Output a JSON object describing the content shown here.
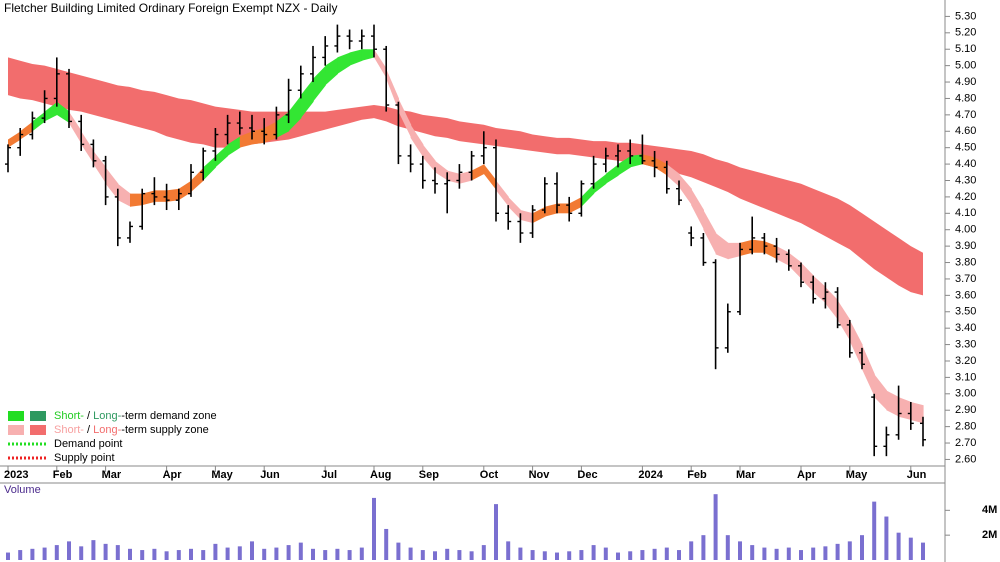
{
  "chart_data": {
    "type": "ohlc",
    "title": "Fletcher Building Limited Ordinary Foreign Exempt NZX - Daily",
    "categories": [
      "2023",
      null,
      null,
      null,
      "Feb",
      null,
      null,
      null,
      "Mar",
      null,
      null,
      null,
      null,
      "Apr",
      null,
      null,
      null,
      "May",
      null,
      null,
      null,
      "Jun",
      null,
      null,
      null,
      null,
      "Jul",
      null,
      null,
      null,
      "Aug",
      null,
      null,
      null,
      "Sep",
      null,
      null,
      null,
      null,
      "Oct",
      null,
      null,
      null,
      "Nov",
      null,
      null,
      null,
      "Dec",
      null,
      null,
      null,
      null,
      "2024",
      null,
      null,
      null,
      "Feb",
      null,
      null,
      null,
      "Mar",
      null,
      null,
      null,
      null,
      "Apr",
      null,
      null,
      null,
      "May",
      null,
      null,
      null,
      null,
      "Jun",
      null
    ],
    "open": [
      4.4,
      4.5,
      4.58,
      4.68,
      4.8,
      4.95,
      4.66,
      4.52,
      4.42,
      4.2,
      3.95,
      4.02,
      4.22,
      4.2,
      4.18,
      4.22,
      4.35,
      4.48,
      4.58,
      4.65,
      4.62,
      4.6,
      4.58,
      4.7,
      4.85,
      4.95,
      5.05,
      5.12,
      5.18,
      5.15,
      5.18,
      5.1,
      4.76,
      4.45,
      4.4,
      4.3,
      4.28,
      4.3,
      4.35,
      4.45,
      4.5,
      4.1,
      4.05,
      3.98,
      4.12,
      4.28,
      4.15,
      4.1,
      4.28,
      4.4,
      4.45,
      4.48,
      4.45,
      4.42,
      4.38,
      4.25,
      3.98,
      3.95,
      3.8,
      3.28,
      3.5,
      3.88,
      3.95,
      3.9,
      3.85,
      3.78,
      3.68,
      3.58,
      3.62,
      3.42,
      3.25,
      2.98,
      2.68,
      2.75,
      2.88,
      2.82
    ],
    "high": [
      4.52,
      4.62,
      4.72,
      4.85,
      5.05,
      4.98,
      4.7,
      4.55,
      4.45,
      4.25,
      4.05,
      4.25,
      4.32,
      4.28,
      4.25,
      4.4,
      4.5,
      4.62,
      4.7,
      4.72,
      4.7,
      4.68,
      4.75,
      4.92,
      5.0,
      5.12,
      5.18,
      5.25,
      5.22,
      5.22,
      5.25,
      5.12,
      4.78,
      4.52,
      4.45,
      4.38,
      4.35,
      4.4,
      4.48,
      4.6,
      4.55,
      4.15,
      4.1,
      4.15,
      4.32,
      4.35,
      4.2,
      4.3,
      4.45,
      4.5,
      4.52,
      4.55,
      4.58,
      4.48,
      4.42,
      4.3,
      4.02,
      3.98,
      3.82,
      3.55,
      3.92,
      4.08,
      3.98,
      3.95,
      3.88,
      3.8,
      3.72,
      3.68,
      3.65,
      3.45,
      3.28,
      3.0,
      2.8,
      3.05,
      2.95,
      2.86
    ],
    "low": [
      4.35,
      4.45,
      4.55,
      4.65,
      4.75,
      4.62,
      4.48,
      4.38,
      4.15,
      3.9,
      3.92,
      4.0,
      4.15,
      4.12,
      4.12,
      4.2,
      4.3,
      4.42,
      4.52,
      4.58,
      4.55,
      4.52,
      4.55,
      4.65,
      4.8,
      4.9,
      5.0,
      5.08,
      5.1,
      5.1,
      5.05,
      4.72,
      4.4,
      4.35,
      4.25,
      4.22,
      4.1,
      4.25,
      4.3,
      4.4,
      4.05,
      4.0,
      3.92,
      3.95,
      4.1,
      4.1,
      4.05,
      4.08,
      4.25,
      4.35,
      4.38,
      4.4,
      4.4,
      4.32,
      4.22,
      4.15,
      3.9,
      3.78,
      3.15,
      3.25,
      3.48,
      3.85,
      3.85,
      3.8,
      3.75,
      3.65,
      3.55,
      3.52,
      3.4,
      3.22,
      3.15,
      2.62,
      2.62,
      2.72,
      2.78,
      2.68
    ],
    "close": [
      4.5,
      4.58,
      4.68,
      4.8,
      4.95,
      4.66,
      4.52,
      4.42,
      4.2,
      3.95,
      4.02,
      4.22,
      4.2,
      4.18,
      4.22,
      4.35,
      4.48,
      4.58,
      4.65,
      4.62,
      4.6,
      4.58,
      4.7,
      4.85,
      4.95,
      5.05,
      5.12,
      5.18,
      5.15,
      5.18,
      5.1,
      4.76,
      4.45,
      4.4,
      4.3,
      4.28,
      4.3,
      4.35,
      4.45,
      4.5,
      4.1,
      4.05,
      3.98,
      4.12,
      4.28,
      4.15,
      4.1,
      4.28,
      4.4,
      4.45,
      4.48,
      4.45,
      4.42,
      4.38,
      4.25,
      4.18,
      3.95,
      3.8,
      3.28,
      3.5,
      3.88,
      3.95,
      3.9,
      3.85,
      3.78,
      3.68,
      3.58,
      3.62,
      3.42,
      3.25,
      3.18,
      2.68,
      2.75,
      2.88,
      2.82,
      2.72
    ],
    "bar_color": "#000000",
    "long_band": {
      "color": "#f26d6d",
      "upper": [
        5.05,
        5.03,
        5.01,
        5.0,
        4.98,
        4.96,
        4.94,
        4.92,
        4.9,
        4.88,
        4.87,
        4.85,
        4.84,
        4.82,
        4.8,
        4.79,
        4.77,
        4.75,
        4.74,
        4.73,
        4.72,
        4.72,
        4.72,
        4.72,
        4.72,
        4.72,
        4.72,
        4.73,
        4.74,
        4.75,
        4.76,
        4.75,
        4.73,
        4.72,
        4.7,
        4.69,
        4.68,
        4.66,
        4.65,
        4.64,
        4.62,
        4.61,
        4.6,
        4.58,
        4.57,
        4.56,
        4.56,
        4.55,
        4.54,
        4.54,
        4.53,
        4.53,
        4.52,
        4.51,
        4.5,
        4.49,
        4.48,
        4.46,
        4.43,
        4.41,
        4.38,
        4.36,
        4.34,
        4.32,
        4.3,
        4.28,
        4.25,
        4.22,
        4.19,
        4.15,
        4.1,
        4.05,
        4.0,
        3.95,
        3.9,
        3.86
      ],
      "lower": [
        4.82,
        4.8,
        4.79,
        4.77,
        4.75,
        4.73,
        4.72,
        4.7,
        4.68,
        4.66,
        4.64,
        4.62,
        4.6,
        4.57,
        4.55,
        4.53,
        4.52,
        4.5,
        4.5,
        4.51,
        4.52,
        4.53,
        4.54,
        4.55,
        4.57,
        4.59,
        4.61,
        4.63,
        4.65,
        4.67,
        4.68,
        4.66,
        4.63,
        4.61,
        4.59,
        4.57,
        4.56,
        4.54,
        4.53,
        4.52,
        4.51,
        4.5,
        4.49,
        4.48,
        4.47,
        4.46,
        4.46,
        4.45,
        4.44,
        4.43,
        4.42,
        4.41,
        4.4,
        4.38,
        4.36,
        4.34,
        4.32,
        4.29,
        4.26,
        4.23,
        4.19,
        4.16,
        4.13,
        4.1,
        4.07,
        4.04,
        4.0,
        3.96,
        3.92,
        3.88,
        3.82,
        3.76,
        3.71,
        3.66,
        3.62,
        3.6
      ]
    },
    "short_band": {
      "upper": [
        4.55,
        4.6,
        4.66,
        4.72,
        4.78,
        4.72,
        4.6,
        4.48,
        4.38,
        4.28,
        4.22,
        4.22,
        4.24,
        4.24,
        4.25,
        4.3,
        4.38,
        4.45,
        4.52,
        4.57,
        4.6,
        4.62,
        4.66,
        4.72,
        4.82,
        4.92,
        5.0,
        5.05,
        5.08,
        5.1,
        5.1,
        4.98,
        4.8,
        4.64,
        4.52,
        4.42,
        4.36,
        4.34,
        4.36,
        4.4,
        4.3,
        4.2,
        4.12,
        4.1,
        4.14,
        4.16,
        4.16,
        4.2,
        4.28,
        4.34,
        4.4,
        4.45,
        4.46,
        4.44,
        4.4,
        4.34,
        4.25,
        4.12,
        3.98,
        3.92,
        3.92,
        3.94,
        3.93,
        3.9,
        3.86,
        3.8,
        3.72,
        3.65,
        3.57,
        3.45,
        3.3,
        3.12,
        3.02,
        2.98,
        2.95,
        2.93
      ],
      "lower": [
        4.5,
        4.55,
        4.6,
        4.66,
        4.7,
        4.65,
        4.52,
        4.4,
        4.28,
        4.18,
        4.14,
        4.15,
        4.17,
        4.17,
        4.18,
        4.23,
        4.3,
        4.38,
        4.45,
        4.5,
        4.52,
        4.53,
        4.56,
        4.6,
        4.68,
        4.78,
        4.88,
        4.95,
        5.0,
        5.03,
        5.05,
        4.92,
        4.72,
        4.56,
        4.44,
        4.35,
        4.3,
        4.28,
        4.3,
        4.34,
        4.24,
        4.14,
        4.06,
        4.04,
        4.08,
        4.1,
        4.1,
        4.14,
        4.22,
        4.28,
        4.33,
        4.38,
        4.4,
        4.38,
        4.33,
        4.26,
        4.15,
        4.0,
        3.85,
        3.82,
        3.84,
        3.86,
        3.86,
        3.82,
        3.78,
        3.7,
        3.62,
        3.55,
        3.45,
        3.32,
        3.15,
        2.98,
        2.9,
        2.86,
        2.84,
        2.82
      ],
      "segment_colors": [
        "#f27a33",
        "#f27a33",
        "#33e633",
        "#33e633",
        "#33e633",
        "#f7b0b0",
        "#f7b0b0",
        "#f7b0b0",
        "#f7b0b0",
        "#f7b0b0",
        "#f27a33",
        "#f27a33",
        "#f27a33",
        "#f27a33",
        "#f27a33",
        "#f27a33",
        "#33e633",
        "#33e633",
        "#33e633",
        "#f27a33",
        "#f27a33",
        "#f27a33",
        "#33e633",
        "#33e633",
        "#33e633",
        "#33e633",
        "#33e633",
        "#33e633",
        "#33e633",
        "#33e633",
        "#f7b0b0",
        "#f7b0b0",
        "#f7b0b0",
        "#f7b0b0",
        "#f7b0b0",
        "#f7b0b0",
        "#f7b0b0",
        "#f7b0b0",
        "#f27a33",
        "#f27a33",
        "#f7b0b0",
        "#f7b0b0",
        "#f7b0b0",
        "#f27a33",
        "#f27a33",
        "#f27a33",
        "#f27a33",
        "#33e633",
        "#33e633",
        "#33e633",
        "#33e633",
        "#33e633",
        "#f27a33",
        "#f27a33",
        "#f7b0b0",
        "#f7b0b0",
        "#f7b0b0",
        "#f7b0b0",
        "#f7b0b0",
        "#f7b0b0",
        "#f27a33",
        "#f27a33",
        "#f27a33",
        "#f7b0b0",
        "#f7b0b0",
        "#f7b0b0",
        "#f7b0b0",
        "#f7b0b0",
        "#f7b0b0",
        "#f7b0b0",
        "#f7b0b0",
        "#f7b0b0",
        "#f7b0b0",
        "#f7b0b0",
        "#f7b0b0"
      ]
    },
    "ylim": [
      2.56,
      5.4
    ],
    "yticks": [
      {
        "value": 2.6,
        "label": "2.60"
      },
      {
        "value": 2.7,
        "label": "2.70"
      },
      {
        "value": 2.8,
        "label": "2.80"
      },
      {
        "value": 2.9,
        "label": "2.90"
      },
      {
        "value": 3.0,
        "label": "3.00"
      },
      {
        "value": 3.1,
        "label": "3.10"
      },
      {
        "value": 3.2,
        "label": "3.20"
      },
      {
        "value": 3.3,
        "label": "3.30"
      },
      {
        "value": 3.4,
        "label": "3.40"
      },
      {
        "value": 3.5,
        "label": "3.50"
      },
      {
        "value": 3.6,
        "label": "3.60"
      },
      {
        "value": 3.7,
        "label": "3.70"
      },
      {
        "value": 3.8,
        "label": "3.80"
      },
      {
        "value": 3.9,
        "label": "3.90"
      },
      {
        "value": 4.0,
        "label": "4.00"
      },
      {
        "value": 4.1,
        "label": "4.10"
      },
      {
        "value": 4.2,
        "label": "4.20"
      },
      {
        "value": 4.3,
        "label": "4.30"
      },
      {
        "value": 4.4,
        "label": "4.40"
      },
      {
        "value": 4.5,
        "label": "4.50"
      },
      {
        "value": 4.6,
        "label": "4.60"
      },
      {
        "value": 4.7,
        "label": "4.70"
      },
      {
        "value": 4.8,
        "label": "4.80"
      },
      {
        "value": 4.9,
        "label": "4.90"
      },
      {
        "value": 5.0,
        "label": "5.00"
      },
      {
        "value": 5.1,
        "label": "5.10"
      },
      {
        "value": 5.2,
        "label": "5.20"
      },
      {
        "value": 5.3,
        "label": "5.30"
      }
    ],
    "volume": {
      "label": "Volume",
      "color": "#7a6fd0",
      "values": [
        600000,
        800000,
        900000,
        1000000,
        1200000,
        1500000,
        1100000,
        1600000,
        1300000,
        1200000,
        900000,
        800000,
        900000,
        700000,
        800000,
        900000,
        800000,
        1300000,
        1000000,
        1100000,
        1500000,
        900000,
        1000000,
        1200000,
        1400000,
        900000,
        800000,
        900000,
        800000,
        1000000,
        5000000,
        2500000,
        1400000,
        1000000,
        800000,
        700000,
        900000,
        800000,
        700000,
        1200000,
        4500000,
        1500000,
        1000000,
        800000,
        700000,
        600000,
        700000,
        800000,
        1200000,
        1000000,
        600000,
        700000,
        800000,
        900000,
        1000000,
        800000,
        1500000,
        2000000,
        5300000,
        2000000,
        1500000,
        1200000,
        1000000,
        900000,
        1000000,
        800000,
        1000000,
        1100000,
        1300000,
        1500000,
        2000000,
        4700000,
        3500000,
        2200000,
        1800000,
        1400000
      ],
      "ylim": [
        0,
        6200000
      ],
      "yticks": [
        {
          "value": 2000000,
          "label": "2M"
        },
        {
          "value": 4000000,
          "label": "4M"
        }
      ]
    },
    "legend": [
      {
        "swatches": [
          "#22dd22",
          "#2e9960"
        ],
        "parts": [
          {
            "text": "Short-",
            "color": "#22cc22"
          },
          {
            "text": " / ",
            "color": "#000000"
          },
          {
            "text": "Long-",
            "color": "#2e9960"
          },
          {
            "text": "-term demand zone",
            "color": "#000000"
          }
        ]
      },
      {
        "swatches": [
          "#f7b0b0",
          "#f26d6d"
        ],
        "parts": [
          {
            "text": "Short-",
            "color": "#f7a0a0"
          },
          {
            "text": " / ",
            "color": "#000000"
          },
          {
            "text": "Long-",
            "color": "#f26d6d"
          },
          {
            "text": "-term supply zone",
            "color": "#000000"
          }
        ]
      },
      {
        "line": "#22dd22",
        "parts": [
          {
            "text": "Demand point",
            "color": "#000000"
          }
        ]
      },
      {
        "line": "#ee2222",
        "parts": [
          {
            "text": "Supply point",
            "color": "#000000"
          }
        ]
      }
    ]
  }
}
